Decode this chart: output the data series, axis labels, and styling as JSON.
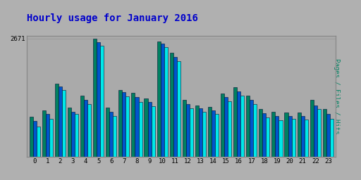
{
  "title": "Hourly usage for January 2016",
  "title_color": "#0000cc",
  "title_fontsize": 10,
  "hours": [
    0,
    1,
    2,
    3,
    4,
    5,
    6,
    7,
    8,
    9,
    10,
    11,
    12,
    13,
    14,
    15,
    16,
    17,
    18,
    19,
    20,
    21,
    22,
    23
  ],
  "ylabel_right": "Pages / Files / Hits",
  "ymax": 2671,
  "ytick_label": "2671",
  "plot_bg_color": "#aaaaaa",
  "outer_bg": "#b0b0b0",
  "bar_width": 0.28,
  "pages": [
    900,
    1050,
    1650,
    1100,
    1380,
    2671,
    1100,
    1500,
    1440,
    1320,
    2600,
    2350,
    1280,
    1150,
    1130,
    1420,
    1570,
    1380,
    1080,
    1010,
    1000,
    1000,
    1280,
    1070
  ],
  "files": [
    810,
    960,
    1580,
    1020,
    1280,
    2580,
    1010,
    1450,
    1340,
    1240,
    2560,
    2250,
    1180,
    1090,
    1050,
    1340,
    1470,
    1280,
    980,
    920,
    920,
    920,
    1150,
    960
  ],
  "hits": [
    680,
    860,
    1500,
    960,
    1180,
    2500,
    920,
    1360,
    1240,
    1140,
    2480,
    2150,
    1090,
    1010,
    960,
    1250,
    1380,
    1180,
    880,
    820,
    860,
    840,
    1070,
    860
  ],
  "pages_color": "#008060",
  "files_color": "#0055cc",
  "hits_color": "#00e8e8",
  "edge_color": "#001030",
  "border_color": "#888888",
  "grid_color": "#999999",
  "tick_color": "#000000"
}
